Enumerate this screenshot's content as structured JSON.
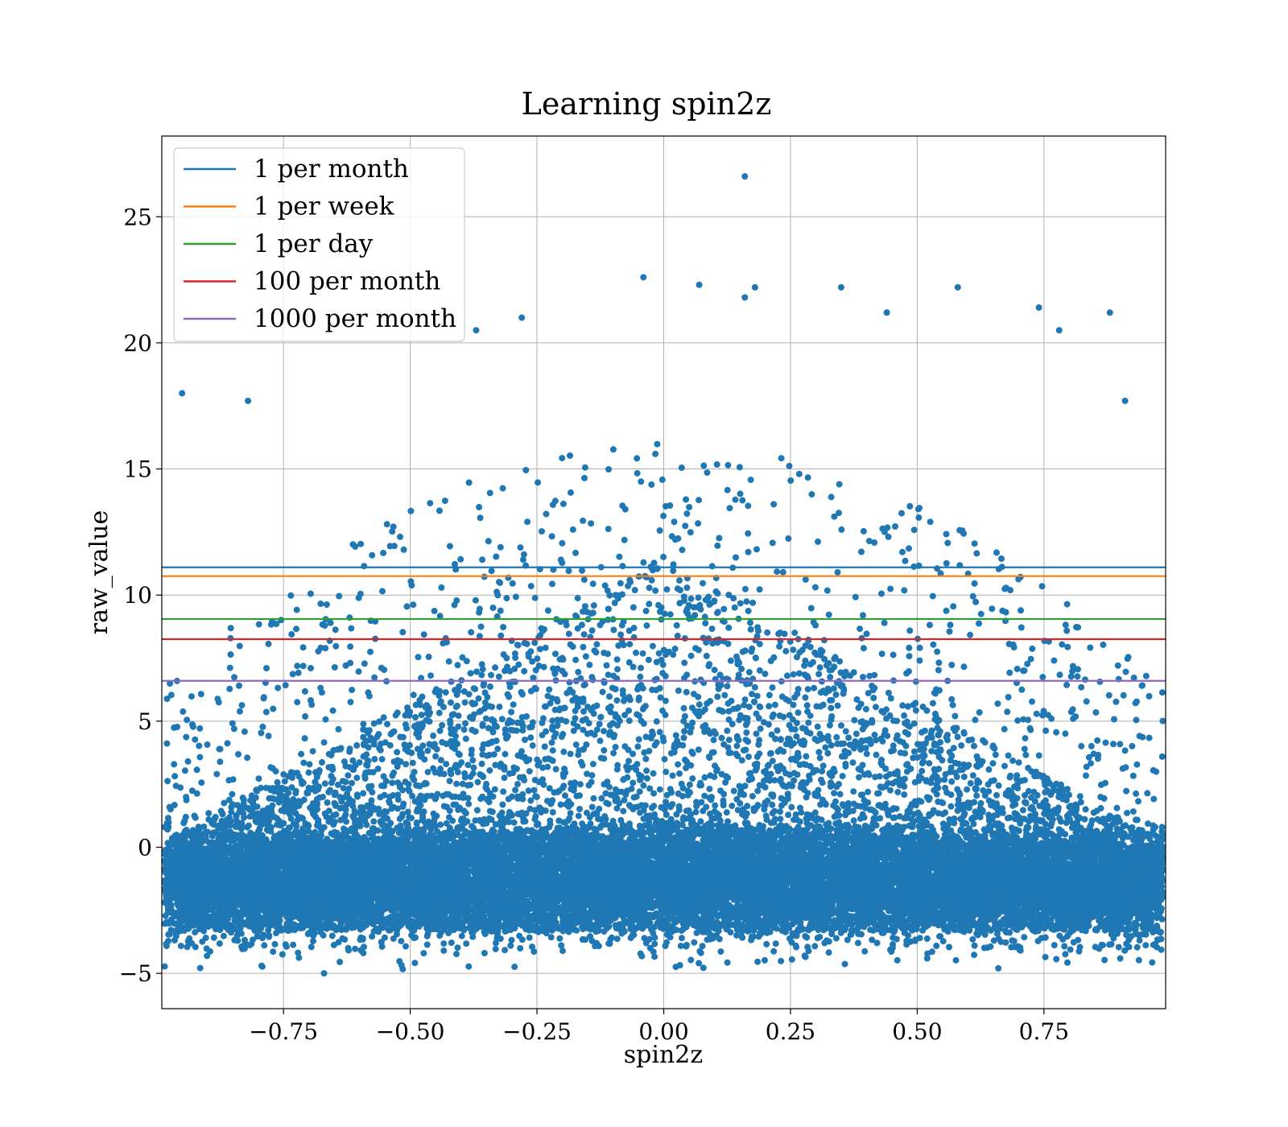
{
  "chart_data": {
    "type": "scatter",
    "title": "Learning spin2z",
    "xlabel": "spin2z",
    "ylabel": "raw_value",
    "xlim": [
      -0.99,
      0.99
    ],
    "ylim": [
      -6.4,
      28.2
    ],
    "xticks": [
      -0.75,
      -0.5,
      -0.25,
      0.0,
      0.25,
      0.5,
      0.75
    ],
    "xtick_labels": [
      "−0.75",
      "−0.50",
      "−0.25",
      "0.00",
      "0.25",
      "0.50",
      "0.75"
    ],
    "yticks": [
      -5,
      0,
      5,
      10,
      15,
      20,
      25
    ],
    "ytick_labels": [
      "−5",
      "0",
      "5",
      "10",
      "15",
      "20",
      "25"
    ],
    "grid": true,
    "legend_position": "top-left",
    "scatter_series": {
      "color": "#1f77b4",
      "notable_points": [
        {
          "x": 0.16,
          "y": 26.6
        },
        {
          "x": -0.04,
          "y": 22.6
        },
        {
          "x": 0.07,
          "y": 22.3
        },
        {
          "x": 0.18,
          "y": 22.2
        },
        {
          "x": 0.35,
          "y": 22.2
        },
        {
          "x": 0.58,
          "y": 22.2
        },
        {
          "x": 0.16,
          "y": 21.8
        },
        {
          "x": 0.74,
          "y": 21.4
        },
        {
          "x": 0.44,
          "y": 21.2
        },
        {
          "x": 0.88,
          "y": 21.2
        },
        {
          "x": -0.28,
          "y": 21.0
        },
        {
          "x": -0.37,
          "y": 20.5
        },
        {
          "x": 0.78,
          "y": 20.5
        },
        {
          "x": -0.95,
          "y": 18.0
        },
        {
          "x": -0.82,
          "y": 17.7
        },
        {
          "x": 0.91,
          "y": 17.7
        },
        {
          "x": -0.67,
          "y": -5.0
        },
        {
          "x": 0.66,
          "y": -4.8
        }
      ]
    },
    "thresholds": [
      {
        "name": "1 per month",
        "y": 11.1,
        "color": "#1f77b4"
      },
      {
        "name": "1 per week",
        "y": 10.75,
        "color": "#ff7f0e"
      },
      {
        "name": "1 per day",
        "y": 9.05,
        "color": "#2ca02c"
      },
      {
        "name": "100 per month",
        "y": 8.25,
        "color": "#d62728"
      },
      {
        "name": "1000 per month",
        "y": 6.6,
        "color": "#9467bd"
      }
    ]
  }
}
